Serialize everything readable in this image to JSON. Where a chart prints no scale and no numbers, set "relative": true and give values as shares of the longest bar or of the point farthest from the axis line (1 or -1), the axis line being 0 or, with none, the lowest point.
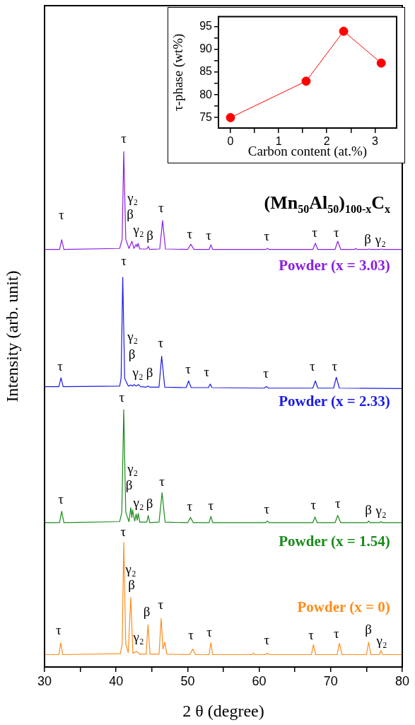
{
  "chart_data": [
    {
      "type": "line",
      "relative": true,
      "xlabel": "2 θ (degree)",
      "ylabel": "Intensity (arb. unit)",
      "marker": "none",
      "xlim": [
        30,
        80
      ],
      "xticks": [
        30,
        {
          "value": 35,
          "label": null
        },
        40,
        {
          "value": 45,
          "label": null
        },
        50,
        {
          "value": 55,
          "label": null
        },
        60,
        {
          "value": 65,
          "label": null
        },
        70,
        {
          "value": 75,
          "label": null
        },
        80
      ],
      "series": [
        {
          "name": "Powder (x = 3.03)",
          "color": "#8a1ee6",
          "x": [
            30,
            32.1,
            32.4,
            32.7,
            40.5,
            40.85,
            41.07,
            41.35,
            41.8,
            42.22,
            42.5,
            42.8,
            42.95,
            43.07,
            43.3,
            44.3,
            44.5,
            44.7,
            46.1,
            46.5,
            46.9,
            50.0,
            50.45,
            50.9,
            53.0,
            53.25,
            53.5,
            60.9,
            61.16,
            61.4,
            67.5,
            67.85,
            68.2,
            70.6,
            70.98,
            71.4,
            73.3,
            73.5,
            73.7,
            75.1,
            75.3,
            75.5,
            76.9,
            77.1,
            77.3,
            80
          ],
          "values": [
            0.81,
            0.81,
            0.829,
            0.81,
            0.812,
            0.83,
            1.0,
            0.83,
            0.812,
            0.826,
            0.812,
            0.82,
            0.815,
            0.822,
            0.811,
            0.811,
            0.816,
            0.81,
            0.811,
            0.866,
            0.811,
            0.81,
            0.82,
            0.81,
            0.81,
            0.819,
            0.81,
            0.81,
            0.812,
            0.81,
            0.81,
            0.822,
            0.81,
            0.81,
            0.826,
            0.81,
            0.81,
            0.812,
            0.81,
            0.81,
            0.811,
            0.81,
            0.81,
            0.811,
            0.81,
            0.81
          ]
        },
        {
          "name": "Powder (x = 2.33)",
          "color": "#1a1ae6",
          "x": [
            30,
            32.0,
            32.3,
            32.6,
            40.5,
            40.7,
            40.93,
            41.2,
            41.7,
            42.05,
            42.3,
            42.5,
            42.8,
            43.14,
            43.4,
            44.2,
            44.43,
            44.7,
            46.0,
            46.37,
            46.8,
            49.8,
            50.13,
            50.5,
            52.9,
            53.15,
            53.4,
            60.7,
            61.0,
            61.3,
            67.5,
            67.85,
            68.2,
            70.4,
            70.78,
            71.2,
            80
          ],
          "values": [
            0.544,
            0.544,
            0.561,
            0.544,
            0.545,
            0.56,
            0.756,
            0.56,
            0.545,
            0.547,
            0.545,
            0.548,
            0.545,
            0.548,
            0.544,
            0.543,
            0.545,
            0.543,
            0.543,
            0.603,
            0.543,
            0.542,
            0.555,
            0.542,
            0.542,
            0.549,
            0.542,
            0.541,
            0.544,
            0.541,
            0.541,
            0.555,
            0.541,
            0.541,
            0.562,
            0.541,
            0.54
          ]
        },
        {
          "name": "Powder (x = 1.54)",
          "color": "#1a8a1a",
          "x": [
            30,
            32.1,
            32.4,
            32.7,
            40.5,
            40.8,
            41.07,
            41.35,
            41.8,
            42.05,
            42.2,
            42.3,
            42.6,
            42.8,
            42.95,
            43.1,
            43.3,
            44.3,
            44.5,
            44.7,
            46.0,
            46.43,
            46.85,
            50.0,
            50.39,
            50.8,
            53.0,
            53.25,
            53.5,
            60.9,
            61.16,
            61.4,
            67.5,
            67.8,
            68.1,
            70.6,
            70.98,
            71.4,
            75.1,
            75.3,
            75.5,
            76.8,
            77.0,
            77.2,
            80
          ],
          "values": [
            0.28,
            0.28,
            0.302,
            0.28,
            0.282,
            0.3,
            0.499,
            0.3,
            0.282,
            0.309,
            0.29,
            0.305,
            0.283,
            0.297,
            0.285,
            0.298,
            0.281,
            0.281,
            0.294,
            0.28,
            0.281,
            0.338,
            0.281,
            0.28,
            0.29,
            0.28,
            0.28,
            0.292,
            0.28,
            0.28,
            0.283,
            0.28,
            0.28,
            0.291,
            0.28,
            0.28,
            0.294,
            0.28,
            0.28,
            0.283,
            0.28,
            0.28,
            0.282,
            0.28,
            0.28
          ]
        },
        {
          "name": "Powder (x = 0)",
          "color": "#ff8c1a",
          "x": [
            30,
            32.0,
            32.27,
            32.55,
            40.6,
            40.85,
            41.07,
            41.35,
            41.7,
            42.05,
            42.35,
            42.9,
            43.3,
            44.2,
            44.46,
            44.75,
            46.0,
            46.3,
            46.55,
            46.8,
            47.1,
            50.3,
            50.72,
            51.1,
            53.0,
            53.25,
            53.5,
            59.0,
            59.18,
            59.4,
            60.9,
            61.16,
            61.4,
            67.3,
            67.58,
            67.9,
            70.9,
            71.2,
            71.6,
            75.0,
            75.3,
            75.6,
            76.8,
            77.0,
            77.3,
            80
          ],
          "values": [
            0.024,
            0.024,
            0.047,
            0.024,
            0.026,
            0.045,
            0.242,
            0.045,
            0.028,
            0.135,
            0.027,
            0.03,
            0.025,
            0.025,
            0.082,
            0.025,
            0.025,
            0.094,
            0.035,
            0.048,
            0.025,
            0.024,
            0.035,
            0.024,
            0.024,
            0.047,
            0.024,
            0.024,
            0.027,
            0.024,
            0.024,
            0.027,
            0.024,
            0.024,
            0.043,
            0.024,
            0.024,
            0.046,
            0.024,
            0.024,
            0.048,
            0.024,
            0.024,
            0.032,
            0.024,
            0.024
          ]
        }
      ],
      "annotations": [
        "(Mn$_{50}$Al$_{50}$)$_{100-x}$C$_{x}$",
        "τ",
        "τ",
        "γ₂",
        "β",
        "γ₂",
        "β",
        "τ",
        "τ",
        "τ",
        "τ",
        "τ",
        "τ",
        "β",
        "γ₂",
        "τ",
        "τ",
        "γ₂",
        "β",
        "γ₂",
        "β",
        "τ",
        "τ",
        "τ",
        "τ",
        "τ",
        "τ",
        "τ",
        "τ",
        "γ₂",
        "β",
        "γ₂",
        "β",
        "τ",
        "τ",
        "τ",
        "τ",
        "τ",
        "τ",
        "β",
        "γ₂",
        "τ",
        "γ₂",
        "β",
        "γ₂",
        "β",
        "τ",
        "τ",
        "τ",
        "τ",
        "τ",
        "τ",
        "τ",
        "β",
        "γ₂"
      ]
    },
    {
      "type": "line",
      "xlabel": "Carbon content (at.%)",
      "ylabel": "τ-phase (wt%)",
      "marker": "circle",
      "color": "#ff0000",
      "x": [
        0,
        1.57,
        2.35,
        3.13
      ],
      "values": [
        75,
        83,
        94,
        87
      ],
      "xlim": [
        -0.25,
        3.45
      ],
      "ylim": [
        72.7,
        97.2
      ],
      "xticks": [
        0,
        {
          "value": 0.5,
          "label": null
        },
        1,
        {
          "value": 1.5,
          "label": null
        },
        2,
        {
          "value": 2.5,
          "label": null
        },
        3
      ],
      "yticks": [
        75,
        {
          "value": 77.5,
          "label": null
        },
        80,
        {
          "value": 82.5,
          "label": null
        },
        85,
        {
          "value": 87.5,
          "label": null
        },
        90,
        {
          "value": 92.5,
          "label": null
        },
        95
      ]
    }
  ]
}
